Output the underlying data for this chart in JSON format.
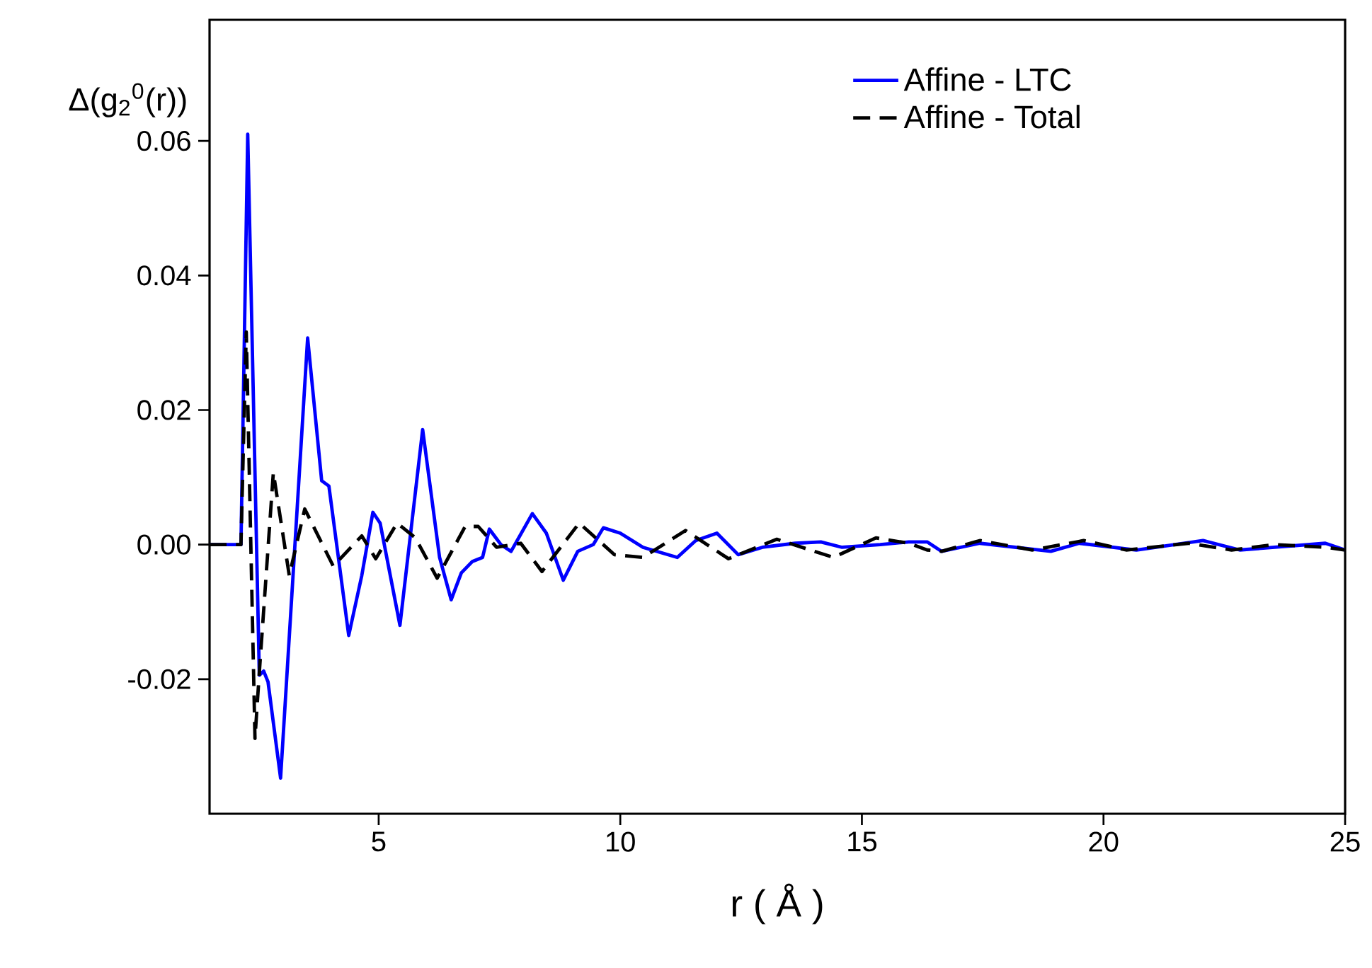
{
  "chart_data": {
    "type": "line",
    "xlabel": "r ( Å )",
    "ylabel": "Δ(g$_{2}$$^{0}$(r))",
    "xlim": [
      1.5,
      25
    ],
    "ylim": [
      -0.04,
      0.078
    ],
    "xticks": [
      5,
      10,
      15,
      20,
      25
    ],
    "yticks": [
      -0.02,
      {
        "value": 0,
        "label": "0.00"
      },
      0.02,
      0.04,
      0.06
    ],
    "legend": "top right",
    "grid": false,
    "series": [
      {
        "name": "Affine - LTC",
        "color": "#0000ff",
        "line_style": "solid",
        "x": [
          1.5,
          2.06,
          2.15,
          2.29,
          2.53,
          2.62,
          2.71,
          2.97,
          3.53,
          3.82,
          3.97,
          4.38,
          4.65,
          4.88,
          5.03,
          5.44,
          5.91,
          6.26,
          6.5,
          6.71,
          6.94,
          7.15,
          7.29,
          7.53,
          7.74,
          8.18,
          8.47,
          8.82,
          9.12,
          9.44,
          9.65,
          10.0,
          10.47,
          11.18,
          11.56,
          12.0,
          12.44,
          12.94,
          13.62,
          14.15,
          14.59,
          15.38,
          15.97,
          16.35,
          16.65,
          17.44,
          18.91,
          19.5,
          20.68,
          22.06,
          22.82,
          24.59,
          25.0
        ],
        "values": [
          0,
          0,
          0,
          0.061,
          -0.0194,
          -0.0188,
          -0.0204,
          -0.0347,
          0.0307,
          0.0095,
          0.0087,
          -0.0135,
          -0.0046,
          0.0048,
          0.0032,
          -0.012,
          0.0171,
          -0.0019,
          -0.0082,
          -0.0042,
          -0.0025,
          -0.0019,
          0.0023,
          0,
          -0.001,
          0.0046,
          0.0017,
          -0.0053,
          -0.001,
          0,
          0.0025,
          0.0017,
          -0.0004,
          -0.0019,
          0.0006,
          0.0017,
          -0.0015,
          -0.0004,
          0.0002,
          0.0004,
          -0.0004,
          0,
          0.0004,
          0.0004,
          -0.001,
          0.0002,
          -0.001,
          0.0002,
          -0.0008,
          0.0006,
          -0.0008,
          0.0002,
          -0.0008
        ]
      },
      {
        "name": "Affine - Total",
        "color": "#000000",
        "line_style": "dashed",
        "x": [
          1.5,
          2.15,
          2.26,
          2.44,
          2.53,
          2.82,
          3.15,
          3.47,
          4.06,
          4.65,
          4.94,
          5.38,
          5.76,
          6.21,
          6.79,
          7.06,
          7.44,
          7.94,
          8.38,
          9.15,
          9.88,
          10.47,
          11.35,
          12.24,
          13.24,
          14.41,
          15.29,
          15.97,
          16.35,
          16.65,
          17.44,
          18.53,
          19.59,
          20.47,
          21.76,
          22.65,
          23.53,
          24.59,
          25.0
        ],
        "values": [
          0,
          0,
          0.0316,
          -0.0288,
          -0.019,
          0.0107,
          -0.0046,
          0.0053,
          -0.0032,
          0.0013,
          -0.0021,
          0.0032,
          0.001,
          -0.005,
          0.0027,
          0.0027,
          -0.0004,
          0.0002,
          -0.004,
          0.0032,
          -0.0015,
          -0.0019,
          0.0021,
          -0.0021,
          0.0008,
          -0.0019,
          0.001,
          0.0002,
          -0.0008,
          -0.001,
          0.0006,
          -0.0008,
          0.0006,
          -0.0008,
          0.0002,
          -0.0008,
          0,
          -0.0004,
          -0.0008
        ]
      }
    ]
  }
}
